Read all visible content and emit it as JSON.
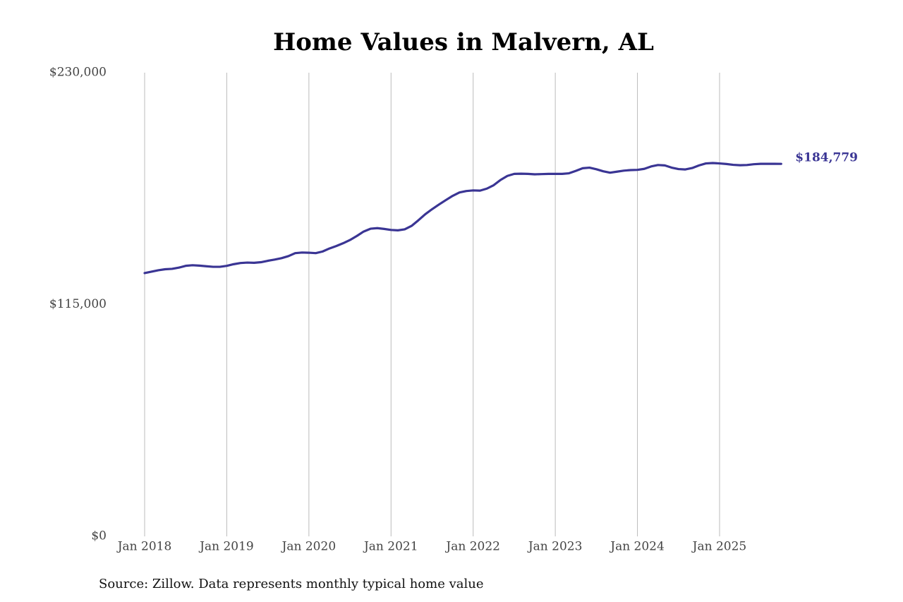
{
  "chart_data": {
    "type": "line",
    "title": "Home Values in Malvern, AL",
    "source": "Source: Zillow. Data represents monthly typical home value",
    "x": [
      "2018-01",
      "2018-02",
      "2018-03",
      "2018-04",
      "2018-05",
      "2018-06",
      "2018-07",
      "2018-08",
      "2018-09",
      "2018-10",
      "2018-11",
      "2018-12",
      "2019-01",
      "2019-02",
      "2019-03",
      "2019-04",
      "2019-05",
      "2019-06",
      "2019-07",
      "2019-08",
      "2019-09",
      "2019-10",
      "2019-11",
      "2019-12",
      "2020-01",
      "2020-02",
      "2020-03",
      "2020-04",
      "2020-05",
      "2020-06",
      "2020-07",
      "2020-08",
      "2020-09",
      "2020-10",
      "2020-11",
      "2020-12",
      "2021-01",
      "2021-02",
      "2021-03",
      "2021-04",
      "2021-05",
      "2021-06",
      "2021-07",
      "2021-08",
      "2021-09",
      "2021-10",
      "2021-11",
      "2021-12",
      "2022-01",
      "2022-02",
      "2022-03",
      "2022-04",
      "2022-05",
      "2022-06",
      "2022-07",
      "2022-08",
      "2022-09",
      "2022-10",
      "2022-11",
      "2022-12",
      "2023-01",
      "2023-02",
      "2023-03",
      "2023-04",
      "2023-05",
      "2023-06",
      "2023-07",
      "2023-08",
      "2023-09",
      "2023-10",
      "2023-11",
      "2023-12",
      "2024-01",
      "2024-02",
      "2024-03",
      "2024-04",
      "2024-05",
      "2024-06",
      "2024-07",
      "2024-08",
      "2024-09",
      "2024-10",
      "2024-11",
      "2024-12",
      "2025-01",
      "2025-02",
      "2025-03",
      "2025-04",
      "2025-05",
      "2025-06",
      "2025-07",
      "2025-08",
      "2025-09",
      "2025-10"
    ],
    "series": [
      {
        "color": "#3a3594",
        "values": [
          130600,
          131300,
          132000,
          132500,
          132700,
          133300,
          134200,
          134500,
          134300,
          134000,
          133700,
          133700,
          134200,
          135000,
          135600,
          135800,
          135700,
          136000,
          136700,
          137300,
          138000,
          139000,
          140500,
          140800,
          140700,
          140500,
          141300,
          142800,
          144000,
          145400,
          147000,
          149000,
          151200,
          152600,
          152900,
          152500,
          152000,
          151800,
          152300,
          154000,
          156800,
          159800,
          162300,
          164600,
          166800,
          168900,
          170600,
          171300,
          171600,
          171500,
          172500,
          174200,
          176800,
          178800,
          179800,
          179900,
          179800,
          179600,
          179700,
          179800,
          179800,
          179800,
          180100,
          181300,
          182600,
          182900,
          182100,
          181100,
          180400,
          180900,
          181400,
          181700,
          181800,
          182300,
          183500,
          184200,
          184000,
          182900,
          182200,
          182000,
          182700,
          184000,
          185000,
          185200,
          185000,
          184700,
          184300,
          184100,
          184200,
          184600,
          184800,
          184800,
          184800,
          184779
        ],
        "value_labels": [
          null,
          null,
          null,
          null,
          null,
          null,
          null,
          null,
          null,
          null,
          null,
          null,
          null,
          null,
          null,
          null,
          null,
          null,
          null,
          null,
          null,
          null,
          null,
          null,
          null,
          null,
          null,
          null,
          null,
          null,
          null,
          null,
          null,
          null,
          null,
          null,
          null,
          null,
          null,
          null,
          null,
          null,
          null,
          null,
          null,
          null,
          null,
          null,
          null,
          null,
          null,
          null,
          null,
          null,
          null,
          null,
          null,
          null,
          null,
          null,
          null,
          null,
          null,
          null,
          null,
          null,
          null,
          null,
          null,
          null,
          null,
          null,
          null,
          null,
          null,
          null,
          null,
          null,
          null,
          null,
          null,
          null,
          null,
          null,
          null,
          null,
          null,
          null,
          null,
          null,
          null,
          null,
          null,
          "$184,779"
        ]
      }
    ],
    "xlim": [
      "2017-07",
      "2026-01"
    ],
    "xticks": [
      {
        "value": "2018-01",
        "label": "Jan 2018"
      },
      {
        "value": "2019-01",
        "label": "Jan 2019"
      },
      {
        "value": "2020-01",
        "label": "Jan 2020"
      },
      {
        "value": "2021-01",
        "label": "Jan 2021"
      },
      {
        "value": "2022-01",
        "label": "Jan 2022"
      },
      {
        "value": "2023-01",
        "label": "Jan 2023"
      },
      {
        "value": "2024-01",
        "label": "Jan 2024"
      },
      {
        "value": "2025-01",
        "label": "Jan 2025"
      }
    ],
    "ylim": [
      0,
      230000
    ],
    "yticks": [
      {
        "value": 0,
        "label": "$0"
      },
      {
        "value": 115000,
        "label": "$115,000"
      },
      {
        "value": 230000,
        "label": "$230,000"
      }
    ],
    "xgrid": true
  }
}
